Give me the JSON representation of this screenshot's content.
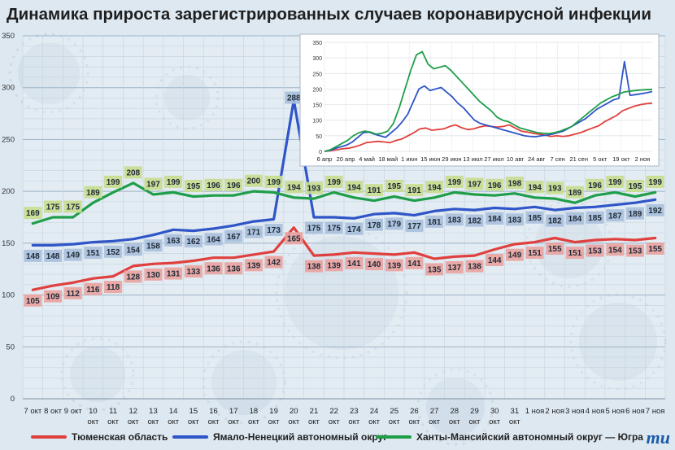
{
  "title": "Динамика прироста зарегистрированных случаев коронавирусной инфекции",
  "colors": {
    "red": "#e0403d",
    "blue": "#2f55c8",
    "green": "#1f9e4a",
    "label_red": "#e9a3a1",
    "label_blue": "#a8bfdc",
    "label_green": "#c8dc90"
  },
  "legend": [
    {
      "name": "Тюменская область",
      "color": "#e0403d"
    },
    {
      "name": "Ямало-Ненецкий автономный округ",
      "color": "#2f55c8"
    },
    {
      "name": "Ханты-Мансийский автономный округ — Югра",
      "color": "#1f9e4a"
    }
  ],
  "logo_text": "mu",
  "chart_data": [
    {
      "type": "line",
      "title": "Динамика прироста зарегистрированных случаев коронавирусной инфекции",
      "x_ticks": [
        [
          "7 окт"
        ],
        [
          "8 окт"
        ],
        [
          "9 окт"
        ],
        [
          "10",
          "окт"
        ],
        [
          "11",
          "окт"
        ],
        [
          "12",
          "окт"
        ],
        [
          "13",
          "окт"
        ],
        [
          "14",
          "окт"
        ],
        [
          "15",
          "окт"
        ],
        [
          "16",
          "окт"
        ],
        [
          "17",
          "окт"
        ],
        [
          "18",
          "окт"
        ],
        [
          "19",
          "окт"
        ],
        [
          "20",
          "окт"
        ],
        [
          "21",
          "окт"
        ],
        [
          "22",
          "окт"
        ],
        [
          "23",
          "окт"
        ],
        [
          "24",
          "окт"
        ],
        [
          "25",
          "окт"
        ],
        [
          "26",
          "окт"
        ],
        [
          "27",
          "окт"
        ],
        [
          "28",
          "окт"
        ],
        [
          "29",
          "окт"
        ],
        [
          "30",
          "окт"
        ],
        [
          "31",
          "окт"
        ],
        [
          "1 ноя"
        ],
        [
          "2 ноя"
        ],
        [
          "3 ноя"
        ],
        [
          "4 ноя"
        ],
        [
          "5 ноя"
        ],
        [
          "6 ноя"
        ],
        [
          "7 ноя"
        ]
      ],
      "categories": [
        "7 окт",
        "8 окт",
        "9 окт",
        "10 окт",
        "11 окт",
        "12 окт",
        "13 окт",
        "14 окт",
        "15 окт",
        "16 окт",
        "17 окт",
        "18 окт",
        "19 окт",
        "20 окт",
        "21 окт",
        "22 окт",
        "23 окт",
        "24 окт",
        "25 окт",
        "26 окт",
        "27 окт",
        "28 окт",
        "29 окт",
        "30 окт",
        "31 окт",
        "1 ноя",
        "2 ноя",
        "3 ноя",
        "4 ноя",
        "5 ноя",
        "6 ноя",
        "7 ноя"
      ],
      "ylim": [
        0,
        350
      ],
      "y_ticks": [
        0,
        50,
        100,
        150,
        200,
        250,
        300,
        350
      ],
      "grid": true,
      "series": [
        {
          "name": "Тюменская область",
          "color": "#e0403d",
          "values": [
            105,
            109,
            112,
            116,
            118,
            128,
            130,
            131,
            133,
            136,
            136,
            139,
            142,
            165,
            138,
            139,
            141,
            140,
            139,
            141,
            135,
            137,
            138,
            144,
            149,
            151,
            155,
            151,
            153,
            154,
            153,
            155
          ]
        },
        {
          "name": "Ямало-Ненецкий автономный округ",
          "color": "#2f55c8",
          "values": [
            148,
            148,
            149,
            151,
            152,
            154,
            158,
            163,
            162,
            164,
            167,
            171,
            173,
            288,
            175,
            175,
            174,
            178,
            179,
            177,
            181,
            183,
            182,
            184,
            183,
            185,
            182,
            184,
            185,
            187,
            189,
            192
          ]
        },
        {
          "name": "Ханты-Мансийский автономный округ — Югра",
          "color": "#1f9e4a",
          "values": [
            169,
            175,
            175,
            189,
            199,
            208,
            197,
            199,
            195,
            196,
            196,
            200,
            199,
            194,
            193,
            199,
            194,
            191,
            195,
            191,
            194,
            199,
            197,
            196,
            198,
            194,
            193,
            189,
            196,
            199,
            195,
            199
          ]
        }
      ]
    },
    {
      "type": "line",
      "x_ticks": [
        "6 апр",
        "20 апр",
        "4 май",
        "18 май",
        "1 июн",
        "15 июн",
        "29 июн",
        "13 июл",
        "27 июл",
        "10 авг",
        "24 авг",
        "7 сен",
        "21 сен",
        "5 окт",
        "19 окт",
        "2 ноя"
      ],
      "ylim": [
        0,
        350
      ],
      "y_ticks": [
        0,
        50,
        100,
        150,
        200,
        250,
        300,
        350
      ],
      "grid": true,
      "series": [
        {
          "name": "Тюменская область",
          "color": "#e0403d",
          "values": [
            0,
            2,
            5,
            8,
            10,
            14,
            20,
            28,
            30,
            32,
            30,
            28,
            35,
            40,
            50,
            60,
            72,
            75,
            68,
            70,
            72,
            80,
            85,
            76,
            70,
            72,
            78,
            82,
            80,
            78,
            80,
            85,
            75,
            65,
            62,
            58,
            55,
            52,
            48,
            50,
            48,
            50,
            55,
            60,
            68,
            75,
            82,
            95,
            105,
            115,
            130,
            138,
            145,
            150,
            153,
            155
          ]
        },
        {
          "name": "Ямало-Ненецкий автономный округ",
          "color": "#2f55c8",
          "values": [
            0,
            3,
            10,
            15,
            20,
            30,
            45,
            60,
            62,
            55,
            50,
            45,
            60,
            75,
            95,
            120,
            160,
            200,
            210,
            195,
            200,
            205,
            190,
            175,
            155,
            140,
            120,
            100,
            90,
            85,
            80,
            75,
            70,
            65,
            60,
            55,
            50,
            48,
            47,
            50,
            52,
            55,
            60,
            65,
            75,
            85,
            95,
            105,
            120,
            135,
            145,
            155,
            165,
            170,
            288,
            180,
            182,
            185,
            188,
            192
          ]
        },
        {
          "name": "Ханты-Мансийский автономный округ — Югра",
          "color": "#1f9e4a",
          "values": [
            0,
            5,
            15,
            25,
            35,
            50,
            60,
            65,
            62,
            55,
            58,
            65,
            90,
            140,
            200,
            260,
            310,
            320,
            280,
            265,
            270,
            275,
            260,
            240,
            220,
            200,
            180,
            160,
            145,
            130,
            110,
            100,
            95,
            85,
            75,
            70,
            65,
            60,
            58,
            57,
            60,
            65,
            72,
            80,
            95,
            110,
            125,
            140,
            155,
            165,
            175,
            182,
            190,
            193,
            195,
            197,
            198,
            199
          ]
        }
      ]
    }
  ]
}
